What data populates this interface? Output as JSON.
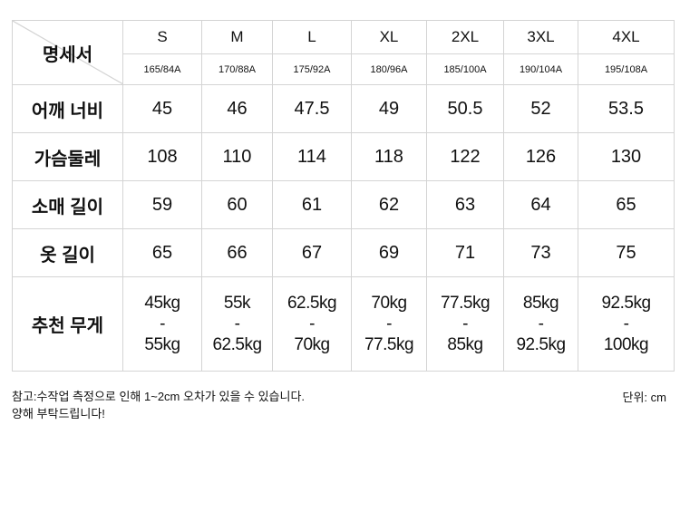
{
  "table": {
    "corner_label": "명세서",
    "sizes": [
      "S",
      "M",
      "L",
      "XL",
      "2XL",
      "3XL",
      "4XL"
    ],
    "specs": [
      "165/84A",
      "170/88A",
      "175/92A",
      "180/96A",
      "185/100A",
      "190/104A",
      "195/108A"
    ],
    "rows": [
      {
        "label": "어깨 너비",
        "values": [
          "45",
          "46",
          "47.5",
          "49",
          "50.5",
          "52",
          "53.5"
        ]
      },
      {
        "label": "가슴둘레",
        "values": [
          "108",
          "110",
          "114",
          "118",
          "122",
          "126",
          "130"
        ]
      },
      {
        "label": "소매 길이",
        "values": [
          "59",
          "60",
          "61",
          "62",
          "63",
          "64",
          "65"
        ]
      },
      {
        "label": "옷 길이",
        "values": [
          "65",
          "66",
          "67",
          "69",
          "71",
          "73",
          "75"
        ]
      }
    ],
    "weight_row": {
      "label": "추천 무게",
      "values": [
        {
          "from": "45kg",
          "sep": "-",
          "to": "55kg"
        },
        {
          "from": "55k",
          "sep": "-",
          "to": "62.5kg"
        },
        {
          "from": "62.5kg",
          "sep": "-",
          "to": "70kg"
        },
        {
          "from": "70kg",
          "sep": "-",
          "to": "77.5kg"
        },
        {
          "from": "77.5kg",
          "sep": "-",
          "to": "85kg"
        },
        {
          "from": "85kg",
          "sep": "-",
          "to": "92.5kg"
        },
        {
          "from": "92.5kg",
          "sep": "-",
          "to": "100kg"
        }
      ]
    }
  },
  "footer": {
    "note_line1": "참고:수작업 측정으로 인해 1~2cm 오차가 있을 수 있습니다.",
    "note_line2": "양해 부탁드립니다!",
    "unit": "단위: cm"
  }
}
